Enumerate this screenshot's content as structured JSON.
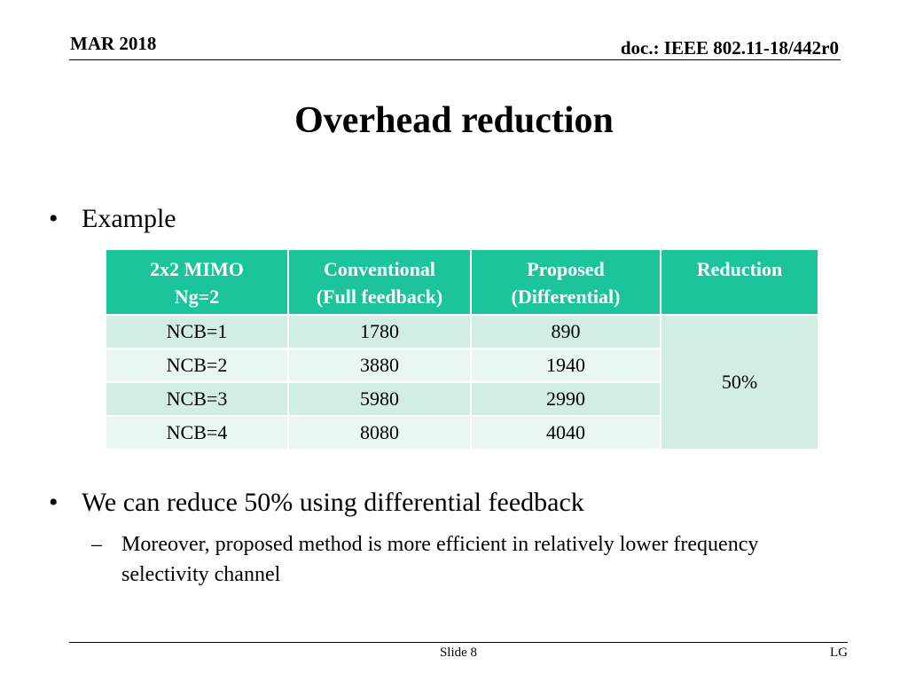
{
  "header": {
    "date": "MAR 2018",
    "doc": "doc.: IEEE 802.11-18/442r0"
  },
  "title": "Overhead reduction",
  "bullets": {
    "example": "Example",
    "conclusion": "We can reduce  50% using differential feedback",
    "sub": "Moreover, proposed method is more efficient in relatively lower frequency selectivity channel"
  },
  "table": {
    "headers": [
      [
        "2x2 MIMO",
        "Ng=2"
      ],
      [
        "Conventional",
        "(Full feedback)"
      ],
      [
        "Proposed",
        "(Differential)"
      ],
      [
        "Reduction"
      ]
    ],
    "rows": [
      [
        "NCB=1",
        "1780",
        "890"
      ],
      [
        "NCB=2",
        "3880",
        "1940"
      ],
      [
        "NCB=3",
        "5980",
        "2990"
      ],
      [
        "NCB=4",
        "8080",
        "4040"
      ]
    ],
    "reduction": "50%",
    "colors": {
      "header_bg": "#1cc49c",
      "row_dark": "#d2ede4",
      "row_light": "#e9f6f1"
    }
  },
  "footer": {
    "slide": "Slide 8",
    "org": "LG"
  },
  "glyphs": {
    "bullet": "•",
    "dash": "–"
  }
}
